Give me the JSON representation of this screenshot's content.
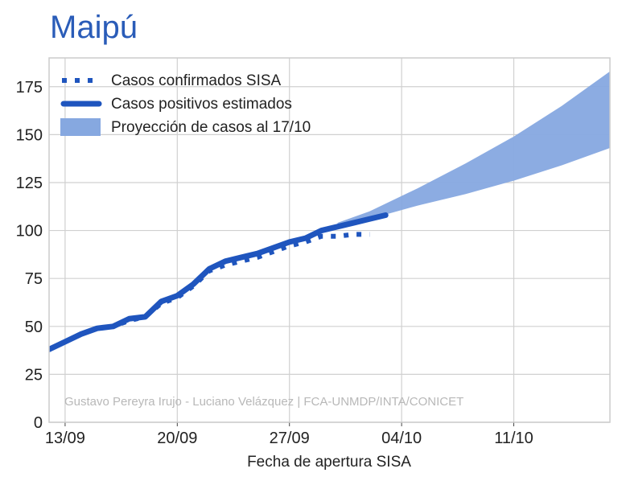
{
  "title": "Maipú",
  "credit": "Gustavo Pereyra Irujo - Luciano Velázquez | FCA-UNMDP/INTA/CONICET",
  "chart_data": {
    "type": "line",
    "xlabel": "Fecha de apertura SISA",
    "ylabel": "",
    "x_unit": "day",
    "xlim": [
      "2020-09-12",
      "2020-10-17"
    ],
    "ylim": [
      0,
      190
    ],
    "yticks": [
      0,
      25,
      50,
      75,
      100,
      125,
      150,
      175
    ],
    "xticks": [
      {
        "date": "2020-09-13",
        "label": "13/09"
      },
      {
        "date": "2020-09-20",
        "label": "20/09"
      },
      {
        "date": "2020-09-27",
        "label": "27/09"
      },
      {
        "date": "2020-10-04",
        "label": "04/10"
      },
      {
        "date": "2020-10-11",
        "label": "11/10"
      }
    ],
    "grid": true,
    "legend_position": "top-left",
    "series": [
      {
        "name": "Casos confirmados SISA",
        "style": "dotted",
        "color": "#1f55be",
        "x": [
          "2020-09-12",
          "2020-09-13",
          "2020-09-14",
          "2020-09-15",
          "2020-09-16",
          "2020-09-17",
          "2020-09-18",
          "2020-09-19",
          "2020-09-20",
          "2020-09-21",
          "2020-09-22",
          "2020-09-23",
          "2020-09-24",
          "2020-09-25",
          "2020-09-26",
          "2020-09-27",
          "2020-09-28",
          "2020-09-29",
          "2020-09-30",
          "2020-10-01",
          "2020-10-02"
        ],
        "y": [
          38,
          42,
          46,
          49,
          50,
          53,
          55,
          62,
          65,
          71,
          79,
          82,
          84,
          86,
          89,
          92,
          94,
          97,
          97,
          98,
          98
        ]
      },
      {
        "name": "Casos positivos estimados",
        "style": "solid",
        "color": "#1f55be",
        "x": [
          "2020-09-12",
          "2020-09-13",
          "2020-09-14",
          "2020-09-15",
          "2020-09-16",
          "2020-09-17",
          "2020-09-18",
          "2020-09-19",
          "2020-09-20",
          "2020-09-21",
          "2020-09-22",
          "2020-09-23",
          "2020-09-24",
          "2020-09-25",
          "2020-09-26",
          "2020-09-27",
          "2020-09-28",
          "2020-09-29",
          "2020-09-30",
          "2020-10-01",
          "2020-10-02",
          "2020-10-03"
        ],
        "y": [
          38,
          42,
          46,
          49,
          50,
          54,
          55,
          63,
          66,
          72,
          80,
          84,
          86,
          88,
          91,
          94,
          96,
          100,
          102,
          104,
          106,
          108
        ]
      },
      {
        "name": "Proyección de casos al 17/10",
        "style": "band",
        "color": "#86a8e0",
        "x": [
          "2020-09-30",
          "2020-10-02",
          "2020-10-05",
          "2020-10-08",
          "2020-10-11",
          "2020-10-14",
          "2020-10-17"
        ],
        "lower": [
          102,
          106,
          113,
          119,
          126,
          134,
          143
        ],
        "upper": [
          104,
          110,
          122,
          135,
          149,
          165,
          183
        ]
      }
    ]
  }
}
